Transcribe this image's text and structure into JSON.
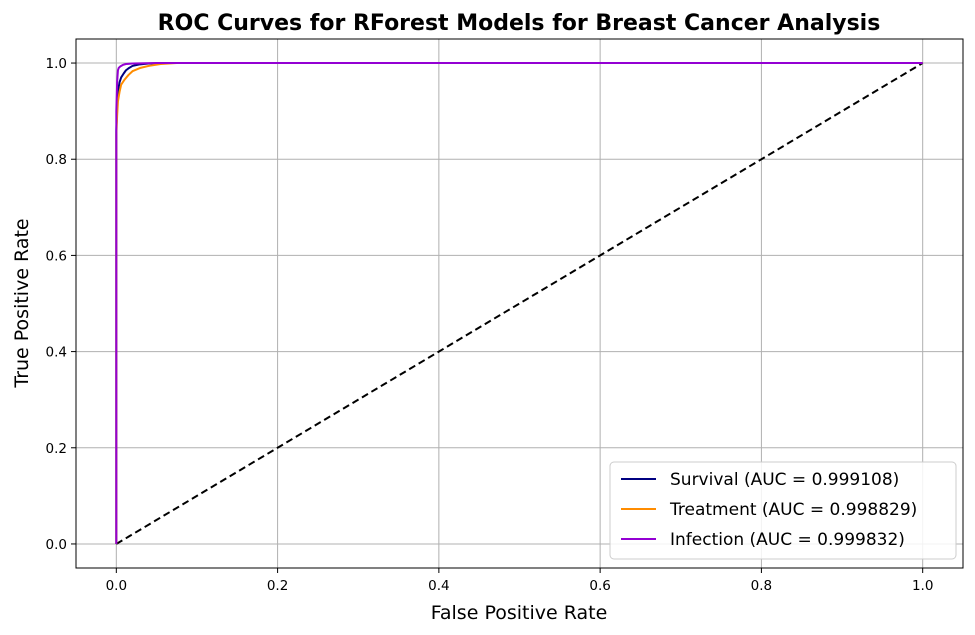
{
  "chart_data": {
    "type": "line",
    "title": "ROC Curves for RForest Models for Breast Cancer Analysis",
    "xlabel": "False Positive Rate",
    "ylabel": "True Positive Rate",
    "xlim": [
      -0.05,
      1.05
    ],
    "ylim": [
      -0.05,
      1.05
    ],
    "xticks": [
      0.0,
      0.2,
      0.4,
      0.6,
      0.8,
      1.0
    ],
    "yticks": [
      0.0,
      0.2,
      0.4,
      0.6,
      0.8,
      1.0
    ],
    "xtick_labels": [
      "0.0",
      "0.2",
      "0.4",
      "0.6",
      "0.8",
      "1.0"
    ],
    "ytick_labels": [
      "0.0",
      "0.2",
      "0.4",
      "0.6",
      "0.8",
      "1.0"
    ],
    "grid": true,
    "legend_position": "bottom-right",
    "series": [
      {
        "name": "Survival (AUC = 0.999108)",
        "color": "#000080",
        "x": [
          0.0,
          0.0,
          0.001,
          0.002,
          0.004,
          0.006,
          0.009,
          0.012,
          0.016,
          0.02,
          0.028,
          0.04,
          0.06,
          1.0
        ],
        "y": [
          0.0,
          0.86,
          0.91,
          0.94,
          0.96,
          0.97,
          0.978,
          0.985,
          0.99,
          0.994,
          0.997,
          0.999,
          1.0,
          1.0
        ]
      },
      {
        "name": "Treatment (AUC = 0.998829)",
        "color": "#ff8c00",
        "x": [
          0.0,
          0.0,
          0.001,
          0.002,
          0.004,
          0.006,
          0.01,
          0.015,
          0.02,
          0.03,
          0.04,
          0.055,
          0.075,
          1.0
        ],
        "y": [
          0.0,
          0.85,
          0.89,
          0.92,
          0.94,
          0.955,
          0.965,
          0.975,
          0.983,
          0.99,
          0.994,
          0.998,
          1.0,
          1.0
        ]
      },
      {
        "name": "Infection (AUC = 0.999832)",
        "color": "#9400d3",
        "x": [
          0.0,
          0.0,
          0.001,
          0.002,
          0.003,
          0.005,
          0.008,
          0.012,
          0.02,
          0.035,
          0.05,
          1.0
        ],
        "y": [
          0.0,
          0.9,
          0.96,
          0.985,
          0.99,
          0.993,
          0.996,
          0.998,
          0.999,
          0.9995,
          1.0,
          1.0
        ]
      },
      {
        "name": "",
        "color": "#000000",
        "dashed": true,
        "x": [
          0.0,
          1.0
        ],
        "y": [
          0.0,
          1.0
        ]
      }
    ]
  }
}
